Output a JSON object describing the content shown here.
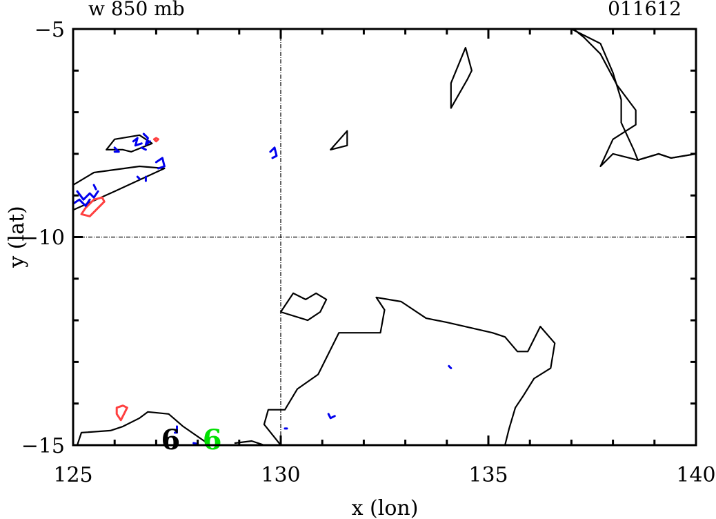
{
  "chart_data": {
    "type": "contour",
    "title_left": "w 850 mb",
    "title_right": "011612",
    "xlabel": "x (lon)",
    "ylabel": "y (lat)",
    "xlim": [
      125,
      140
    ],
    "ylim": [
      -15,
      -5
    ],
    "xticks": [
      125,
      130,
      135,
      140
    ],
    "yticks": [
      -5,
      -10,
      -15
    ],
    "xtick_labels": [
      "125",
      "130",
      "135",
      "140"
    ],
    "ytick_labels": [
      "−5",
      "−10",
      "−15"
    ],
    "reference_lines": {
      "x": 130,
      "y": -10
    },
    "markers": [
      {
        "label": "6",
        "x": 127.35,
        "y": -14.8,
        "color": "#000000"
      },
      {
        "label": "6",
        "x": 128.35,
        "y": -14.8,
        "color": "#00e000"
      }
    ],
    "contours": [
      {
        "color": "#000000",
        "closed": false,
        "points": [
          [
            137.0,
            -5.0
          ],
          [
            137.7,
            -5.35
          ],
          [
            138.0,
            -6.05
          ],
          [
            138.2,
            -6.7
          ],
          [
            138.2,
            -7.25
          ],
          [
            138.5,
            -7.9
          ],
          [
            138.6,
            -8.15
          ],
          [
            139.1,
            -8.0
          ],
          [
            139.4,
            -8.1
          ],
          [
            140.0,
            -8.0
          ]
        ]
      },
      {
        "color": "#000000",
        "closed": false,
        "points": [
          [
            140.0,
            -8.0
          ],
          [
            139.4,
            -8.1
          ],
          [
            139.1,
            -8.0
          ],
          [
            138.6,
            -8.15
          ],
          [
            138.0,
            -8.0
          ],
          [
            137.7,
            -8.3
          ],
          [
            138.0,
            -7.65
          ],
          [
            138.55,
            -7.3
          ],
          [
            138.55,
            -6.95
          ],
          [
            138.1,
            -6.35
          ],
          [
            137.7,
            -5.6
          ],
          [
            137.3,
            -5.2
          ],
          [
            137.05,
            -5.0
          ]
        ]
      },
      {
        "color": "#000000",
        "closed": true,
        "points": [
          [
            134.1,
            -6.9
          ],
          [
            134.1,
            -6.3
          ],
          [
            134.45,
            -5.45
          ],
          [
            134.6,
            -6.0
          ],
          [
            134.5,
            -6.2
          ],
          [
            134.1,
            -6.9
          ]
        ]
      },
      {
        "color": "#000000",
        "closed": true,
        "points": [
          [
            131.2,
            -7.9
          ],
          [
            131.6,
            -7.45
          ],
          [
            131.6,
            -7.8
          ],
          [
            131.2,
            -7.9
          ]
        ]
      },
      {
        "color": "#000000",
        "closed": false,
        "points": [
          [
            125.0,
            -8.75
          ],
          [
            125.5,
            -8.45
          ],
          [
            126.6,
            -8.3
          ],
          [
            127.2,
            -8.35
          ],
          [
            126.0,
            -8.9
          ],
          [
            125.0,
            -9.35
          ]
        ]
      },
      {
        "color": "#000000",
        "closed": false,
        "points": [
          [
            125.8,
            -7.9
          ],
          [
            126.0,
            -7.65
          ],
          [
            126.6,
            -7.55
          ],
          [
            126.9,
            -7.75
          ],
          [
            126.4,
            -7.95
          ],
          [
            126.2,
            -7.9
          ],
          [
            125.8,
            -7.9
          ]
        ]
      },
      {
        "color": "#000000",
        "closed": false,
        "points": [
          [
            130.0,
            -11.8
          ],
          [
            130.3,
            -11.35
          ],
          [
            130.6,
            -11.5
          ],
          [
            130.85,
            -11.35
          ],
          [
            131.1,
            -11.5
          ],
          [
            130.95,
            -11.8
          ],
          [
            130.65,
            -12.0
          ],
          [
            130.0,
            -11.8
          ]
        ]
      },
      {
        "color": "#000000",
        "closed": false,
        "points": [
          [
            130.0,
            -15.0
          ],
          [
            129.6,
            -14.5
          ],
          [
            129.7,
            -14.15
          ],
          [
            130.1,
            -14.15
          ],
          [
            130.4,
            -13.65
          ],
          [
            130.9,
            -13.3
          ],
          [
            131.4,
            -12.3
          ],
          [
            132.4,
            -12.3
          ],
          [
            132.5,
            -11.75
          ],
          [
            132.3,
            -11.45
          ],
          [
            132.9,
            -11.55
          ],
          [
            133.5,
            -11.95
          ],
          [
            134.0,
            -12.05
          ],
          [
            135.1,
            -12.3
          ],
          [
            135.4,
            -12.4
          ],
          [
            135.7,
            -12.75
          ],
          [
            135.95,
            -12.75
          ],
          [
            136.25,
            -12.15
          ],
          [
            136.6,
            -12.55
          ],
          [
            136.5,
            -13.15
          ],
          [
            136.1,
            -13.4
          ],
          [
            135.85,
            -13.8
          ],
          [
            135.65,
            -14.1
          ],
          [
            135.5,
            -14.6
          ],
          [
            135.4,
            -15.0
          ]
        ]
      },
      {
        "color": "#000000",
        "closed": false,
        "points": [
          [
            125.1,
            -15.0
          ],
          [
            125.2,
            -14.7
          ],
          [
            125.9,
            -14.65
          ],
          [
            126.2,
            -14.55
          ],
          [
            126.6,
            -14.35
          ],
          [
            126.8,
            -14.2
          ],
          [
            127.3,
            -14.25
          ],
          [
            127.65,
            -14.55
          ],
          [
            128.3,
            -15.0
          ]
        ]
      },
      {
        "color": "#000000",
        "closed": false,
        "points": [
          [
            128.9,
            -14.95
          ],
          [
            129.3,
            -14.9
          ],
          [
            129.6,
            -15.0
          ]
        ]
      },
      {
        "color": "#ff4040",
        "closed": true,
        "points": [
          [
            125.4,
            -9.5
          ],
          [
            125.6,
            -9.3
          ],
          [
            125.75,
            -9.15
          ],
          [
            125.7,
            -9.05
          ],
          [
            125.5,
            -9.1
          ],
          [
            125.3,
            -9.3
          ],
          [
            125.2,
            -9.45
          ],
          [
            125.4,
            -9.5
          ]
        ]
      },
      {
        "color": "#ff4040",
        "closed": true,
        "points": [
          [
            126.15,
            -14.4
          ],
          [
            126.05,
            -14.25
          ],
          [
            126.05,
            -14.1
          ],
          [
            126.2,
            -14.05
          ],
          [
            126.3,
            -14.1
          ],
          [
            126.25,
            -14.2
          ],
          [
            126.15,
            -14.4
          ]
        ]
      },
      {
        "color": "#ff4040",
        "closed": true,
        "points": [
          [
            126.95,
            -7.65
          ],
          [
            127.0,
            -7.62
          ],
          [
            127.05,
            -7.65
          ],
          [
            127.0,
            -7.7
          ],
          [
            126.95,
            -7.65
          ]
        ]
      },
      {
        "color": "#0000ee",
        "closed": false,
        "points": [
          [
            126.45,
            -7.7
          ],
          [
            126.55,
            -7.62
          ],
          [
            126.5,
            -7.8
          ],
          [
            126.65,
            -7.75
          ]
        ]
      },
      {
        "color": "#0000ee",
        "closed": false,
        "points": [
          [
            126.7,
            -7.52
          ],
          [
            126.8,
            -7.62
          ],
          [
            126.75,
            -7.78
          ],
          [
            126.85,
            -7.7
          ]
        ]
      },
      {
        "color": "#0000ee",
        "closed": false,
        "points": [
          [
            126.0,
            -7.85
          ],
          [
            126.1,
            -7.95
          ],
          [
            126.0,
            -7.95
          ]
        ]
      },
      {
        "color": "#0000ee",
        "closed": false,
        "points": [
          [
            126.65,
            -7.85
          ],
          [
            126.75,
            -7.9
          ]
        ]
      },
      {
        "color": "#0000ee",
        "closed": false,
        "points": [
          [
            127.0,
            -8.2
          ],
          [
            127.15,
            -8.1
          ],
          [
            127.2,
            -8.3
          ],
          [
            127.05,
            -8.35
          ]
        ]
      },
      {
        "color": "#0000ee",
        "closed": false,
        "points": [
          [
            126.75,
            -8.55
          ],
          [
            126.75,
            -8.65
          ]
        ]
      },
      {
        "color": "#0000ee",
        "closed": false,
        "points": [
          [
            126.55,
            -8.55
          ],
          [
            126.6,
            -8.6
          ]
        ]
      },
      {
        "color": "#0000ee",
        "closed": false,
        "points": [
          [
            125.1,
            -8.9
          ],
          [
            125.25,
            -9.1
          ],
          [
            125.4,
            -8.95
          ],
          [
            125.5,
            -9.05
          ],
          [
            125.6,
            -8.9
          ]
        ]
      },
      {
        "color": "#0000ee",
        "closed": false,
        "points": [
          [
            125.0,
            -9.2
          ],
          [
            125.15,
            -9.1
          ],
          [
            125.3,
            -9.25
          ],
          [
            125.4,
            -9.1
          ]
        ]
      },
      {
        "color": "#0000ee",
        "closed": false,
        "points": [
          [
            125.5,
            -8.75
          ],
          [
            125.55,
            -8.85
          ]
        ]
      },
      {
        "color": "#0000ee",
        "closed": false,
        "points": [
          [
            129.75,
            -7.95
          ],
          [
            129.85,
            -7.85
          ],
          [
            129.9,
            -8.05
          ],
          [
            129.8,
            -8.1
          ]
        ]
      },
      {
        "color": "#0000ee",
        "closed": false,
        "points": [
          [
            131.15,
            -14.25
          ],
          [
            131.2,
            -14.35
          ],
          [
            131.3,
            -14.3
          ]
        ]
      },
      {
        "color": "#0000ee",
        "closed": false,
        "points": [
          [
            127.5,
            -14.55
          ],
          [
            127.5,
            -14.7
          ],
          [
            127.45,
            -14.7
          ]
        ]
      },
      {
        "color": "#0000ee",
        "closed": false,
        "points": [
          [
            130.1,
            -14.6
          ],
          [
            130.15,
            -14.6
          ]
        ]
      },
      {
        "color": "#0000ee",
        "closed": false,
        "points": [
          [
            134.05,
            -13.1
          ],
          [
            134.1,
            -13.15
          ]
        ]
      },
      {
        "color": "#0000ee",
        "closed": false,
        "points": [
          [
            127.9,
            -14.95
          ],
          [
            128.0,
            -14.97
          ]
        ]
      }
    ]
  }
}
